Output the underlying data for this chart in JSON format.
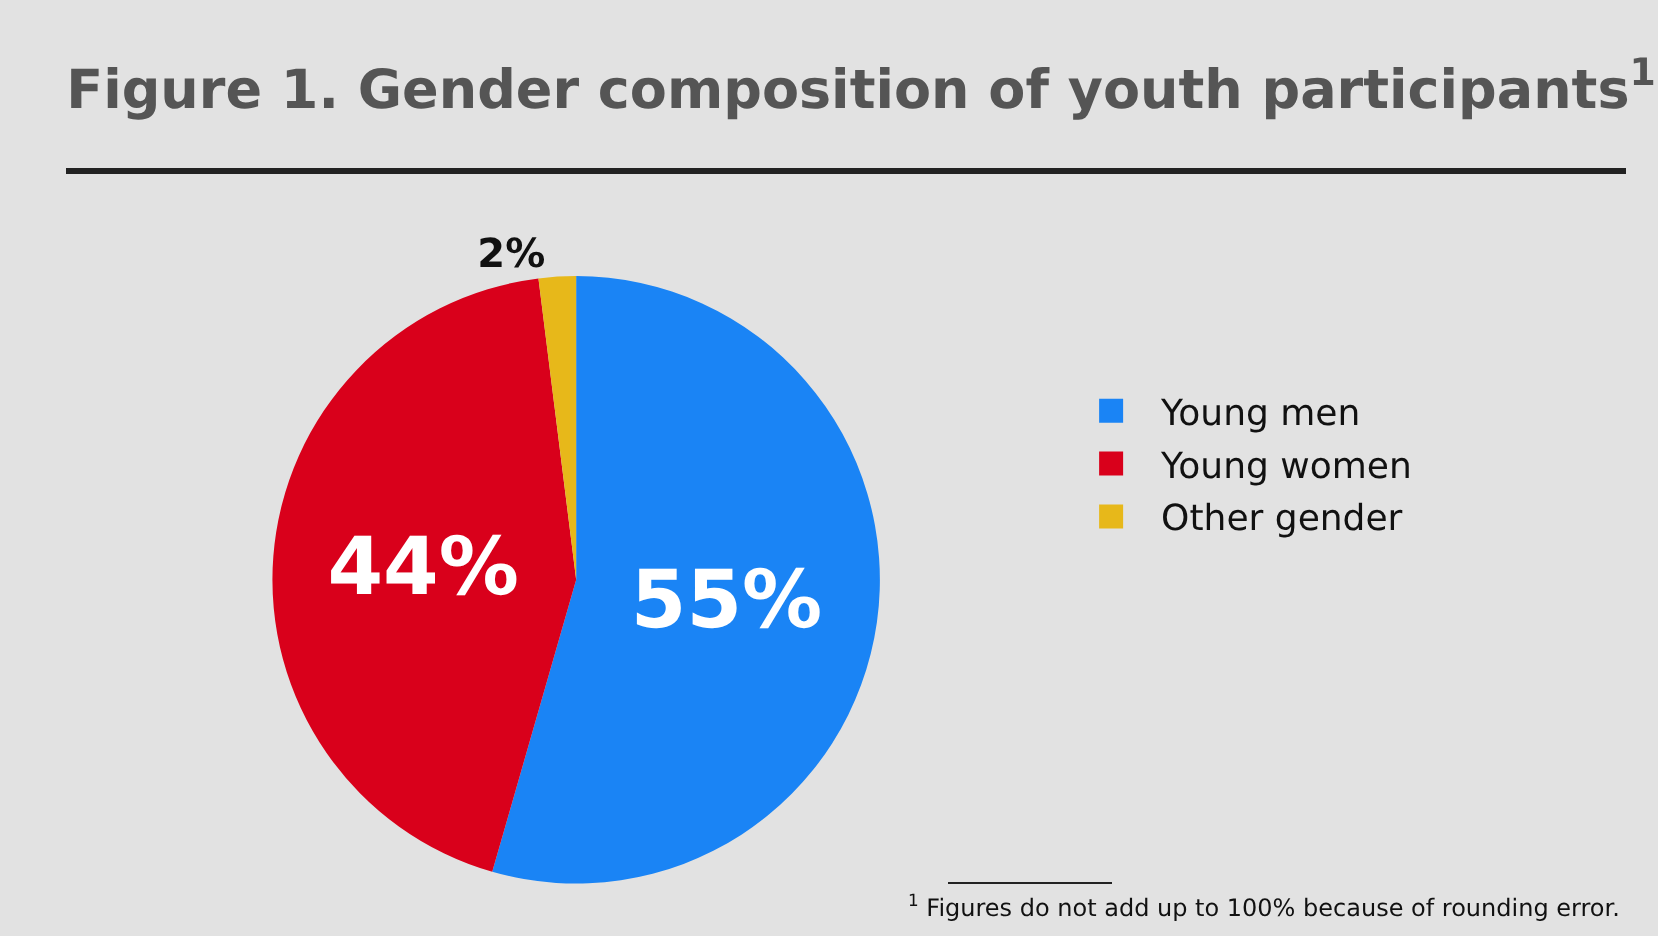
{
  "chart_data": {
    "type": "pie",
    "title": "Figure 1. Gender composition of youth participants$^{1}$",
    "categories": [
      "Young men",
      "Young women",
      "Other gender"
    ],
    "values": [
      55,
      44,
      2
    ],
    "colors": [
      "#1a84f5",
      "#d9001b",
      "#e7b81a"
    ],
    "value_labels": [
      "55%",
      "44%",
      "2%"
    ],
    "legend": "right",
    "annotations": [
      "$^{1}$ Figures do not add up to 100% because of rounding error."
    ]
  }
}
